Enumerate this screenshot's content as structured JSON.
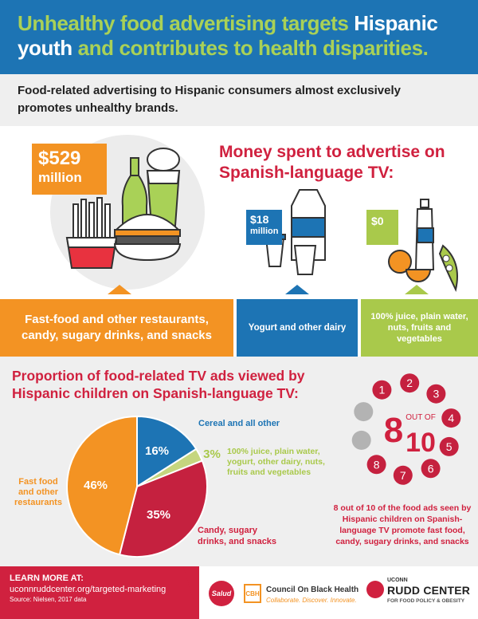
{
  "header": {
    "title_part1": "Unhealthy food advertising targets",
    "title_part2": "Hispanic",
    "title_part3": "youth",
    "title_part4": "and contributes to health disparities."
  },
  "subtitle": {
    "line1": "Food-related advertising to Hispanic consumers almost exclusively",
    "line2": "promotes unhealthy brands."
  },
  "money": {
    "title_line1": "Money spent to advertise on",
    "title_line2": "Spanish-language TV:",
    "fast_amount": "$529",
    "fast_unit": "million",
    "dairy_amount": "$18",
    "dairy_unit": "million",
    "zero_amount": "$0",
    "fast_label_line1": "Fast-food and other restaurants,",
    "fast_label_line2": "candy, sugary drinks, and snacks",
    "dairy_label": "Yogurt and other dairy",
    "zero_label_line1": "100% juice, plain water,",
    "zero_label_line2": "nuts, fruits and vegetables"
  },
  "proportion": {
    "title_line1": "Proportion of food-related TV ads viewed by",
    "title_line2": "Hispanic children on Spanish-language TV:"
  },
  "chart_data": {
    "type": "pie",
    "slices": [
      {
        "label": "Cereal and all other",
        "value": 16,
        "display": "16%",
        "color": "#1d74b4"
      },
      {
        "label": "100% juice, plain water, yogurt, other dairy, nuts, fruits and vegetables",
        "value": 3,
        "display": "3%",
        "color": "#c5d67f"
      },
      {
        "label": "Candy, sugary drinks, and snacks",
        "value": 35,
        "display": "35%",
        "color": "#c5213f"
      },
      {
        "label": "Fast food and other restaurants",
        "value": 46,
        "display": "46%",
        "color": "#f39323"
      }
    ]
  },
  "pie_labels": {
    "cereal": "Cereal and all other",
    "juice_line1": "100% juice, plain water,",
    "juice_line2": "yogurt, other dairy, nuts,",
    "juice_line3": "fruits and vegetables",
    "candy_line1": "Candy, sugary",
    "candy_line2": "drinks, and snacks",
    "fast_line1": "Fast food",
    "fast_line2": "and other",
    "fast_line3": "restaurants"
  },
  "eight_of_ten": {
    "big_number": "8",
    "out_of": "OUT OF",
    "total": "10",
    "highlighted": 8,
    "numbers": [
      "1",
      "2",
      "3",
      "4",
      "5",
      "6",
      "7",
      "8"
    ],
    "colors": {
      "highlight": "#c5213f",
      "muted": "#b3b3b3"
    },
    "caption_line1": "8 out of 10 of the food ads seen by",
    "caption_line2": "Hispanic children on Spanish-",
    "caption_line3": "language TV promote fast food,",
    "caption_line4": "candy, sugary drinks, and snacks"
  },
  "footer": {
    "learn_more": "LEARN MORE AT:",
    "url": "uconnruddcenter.org/targeted-marketing",
    "source": "Source: Nielsen, 2017 data",
    "salud_logo": "Salud",
    "cbh_mark": "CBH",
    "cbh_name": "Council On Black Health",
    "cbh_tagline": "Collaborate. Discover. Innovate.",
    "rudd_small": "UCONN",
    "rudd_big": "RUDD CENTER",
    "rudd_sub": "FOR FOOD POLICY & OBESITY"
  },
  "colors": {
    "blue": "#1d74b4",
    "green": "#a9d157",
    "orange": "#f39323",
    "red": "#d0213f",
    "lime": "#a9c94b",
    "gray_band": "#efefef"
  }
}
